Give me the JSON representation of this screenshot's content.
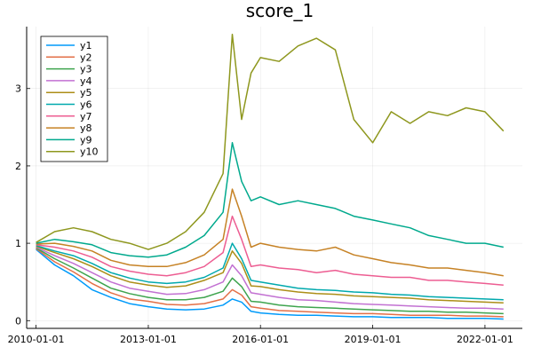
{
  "chart_data": {
    "type": "line",
    "title": "score_1",
    "xlabel": "",
    "ylabel": "",
    "xlim": [
      "2009-10-01",
      "2023-01-01"
    ],
    "ylim": [
      -0.1,
      3.8
    ],
    "x_ticks": [
      "2010-01-01",
      "2013-01-01",
      "2016-01-01",
      "2019-01-01",
      "2022-01-01"
    ],
    "y_ticks": [
      "0",
      "1",
      "2",
      "3"
    ],
    "y_tick_values": [
      0,
      1,
      2,
      3
    ],
    "grid": true,
    "legend": "top-left",
    "x": [
      "2010-01-01",
      "2010-07-01",
      "2011-01-01",
      "2011-07-01",
      "2012-01-01",
      "2012-07-01",
      "2013-01-01",
      "2013-07-01",
      "2014-01-01",
      "2014-07-01",
      "2015-01-01",
      "2015-04-01",
      "2015-07-01",
      "2015-10-01",
      "2016-01-01",
      "2016-07-01",
      "2017-01-01",
      "2017-07-01",
      "2018-01-01",
      "2018-07-01",
      "2019-01-01",
      "2019-07-01",
      "2020-01-01",
      "2020-07-01",
      "2021-01-01",
      "2021-07-01",
      "2022-01-01",
      "2022-07-01"
    ],
    "series": [
      {
        "name": "y1",
        "color": "#009AFA",
        "values": [
          0.92,
          0.72,
          0.58,
          0.4,
          0.3,
          0.22,
          0.18,
          0.15,
          0.14,
          0.15,
          0.2,
          0.28,
          0.24,
          0.12,
          0.1,
          0.08,
          0.07,
          0.07,
          0.06,
          0.05,
          0.05,
          0.04,
          0.04,
          0.04,
          0.03,
          0.03,
          0.03,
          0.02
        ]
      },
      {
        "name": "y2",
        "color": "#E36F47",
        "values": [
          0.93,
          0.76,
          0.63,
          0.48,
          0.36,
          0.28,
          0.25,
          0.21,
          0.2,
          0.22,
          0.28,
          0.4,
          0.33,
          0.18,
          0.16,
          0.13,
          0.12,
          0.11,
          0.1,
          0.09,
          0.09,
          0.08,
          0.07,
          0.07,
          0.07,
          0.06,
          0.06,
          0.05
        ]
      },
      {
        "name": "y3",
        "color": "#3EA44E",
        "values": [
          0.94,
          0.8,
          0.68,
          0.55,
          0.42,
          0.35,
          0.3,
          0.27,
          0.27,
          0.3,
          0.38,
          0.55,
          0.44,
          0.25,
          0.24,
          0.2,
          0.18,
          0.17,
          0.16,
          0.15,
          0.14,
          0.13,
          0.12,
          0.12,
          0.11,
          0.11,
          0.1,
          0.09
        ]
      },
      {
        "name": "y4",
        "color": "#C271D2",
        "values": [
          0.95,
          0.84,
          0.74,
          0.62,
          0.5,
          0.42,
          0.38,
          0.34,
          0.35,
          0.4,
          0.5,
          0.72,
          0.58,
          0.36,
          0.34,
          0.3,
          0.27,
          0.26,
          0.24,
          0.22,
          0.21,
          0.2,
          0.19,
          0.18,
          0.17,
          0.16,
          0.16,
          0.15
        ]
      },
      {
        "name": "y5",
        "color": "#AC8E18",
        "values": [
          0.96,
          0.88,
          0.8,
          0.7,
          0.58,
          0.5,
          0.46,
          0.43,
          0.45,
          0.52,
          0.62,
          0.9,
          0.74,
          0.45,
          0.44,
          0.4,
          0.37,
          0.35,
          0.34,
          0.32,
          0.31,
          0.3,
          0.29,
          0.27,
          0.26,
          0.25,
          0.24,
          0.23
        ]
      },
      {
        "name": "y6",
        "color": "#00A9AD",
        "values": [
          0.97,
          0.9,
          0.84,
          0.74,
          0.62,
          0.55,
          0.5,
          0.48,
          0.5,
          0.56,
          0.68,
          1.0,
          0.8,
          0.52,
          0.5,
          0.46,
          0.42,
          0.4,
          0.39,
          0.37,
          0.36,
          0.34,
          0.33,
          0.31,
          0.3,
          0.29,
          0.28,
          0.27
        ]
      },
      {
        "name": "y7",
        "color": "#ED5D92",
        "values": [
          0.98,
          0.95,
          0.9,
          0.82,
          0.7,
          0.64,
          0.6,
          0.58,
          0.62,
          0.7,
          0.88,
          1.35,
          1.05,
          0.7,
          0.72,
          0.68,
          0.66,
          0.62,
          0.65,
          0.6,
          0.58,
          0.56,
          0.56,
          0.52,
          0.52,
          0.5,
          0.48,
          0.46
        ]
      },
      {
        "name": "y8",
        "color": "#C68225",
        "values": [
          0.99,
          1.0,
          0.96,
          0.9,
          0.78,
          0.72,
          0.7,
          0.7,
          0.75,
          0.85,
          1.05,
          1.7,
          1.35,
          0.95,
          1.0,
          0.95,
          0.92,
          0.9,
          0.95,
          0.85,
          0.8,
          0.75,
          0.72,
          0.68,
          0.68,
          0.65,
          0.62,
          0.58
        ]
      },
      {
        "name": "y9",
        "color": "#00A98D",
        "values": [
          1.0,
          1.05,
          1.02,
          0.98,
          0.88,
          0.84,
          0.82,
          0.85,
          0.95,
          1.1,
          1.4,
          2.3,
          1.8,
          1.55,
          1.6,
          1.5,
          1.55,
          1.5,
          1.45,
          1.35,
          1.3,
          1.25,
          1.2,
          1.1,
          1.05,
          1.0,
          1.0,
          0.95
        ]
      },
      {
        "name": "y10",
        "color": "#8E971E",
        "values": [
          1.01,
          1.15,
          1.2,
          1.15,
          1.05,
          1.0,
          0.92,
          1.0,
          1.15,
          1.4,
          1.9,
          3.7,
          2.6,
          3.2,
          3.4,
          3.35,
          3.55,
          3.65,
          3.5,
          2.6,
          2.3,
          2.7,
          2.55,
          2.7,
          2.65,
          2.75,
          2.7,
          2.45
        ]
      }
    ]
  }
}
